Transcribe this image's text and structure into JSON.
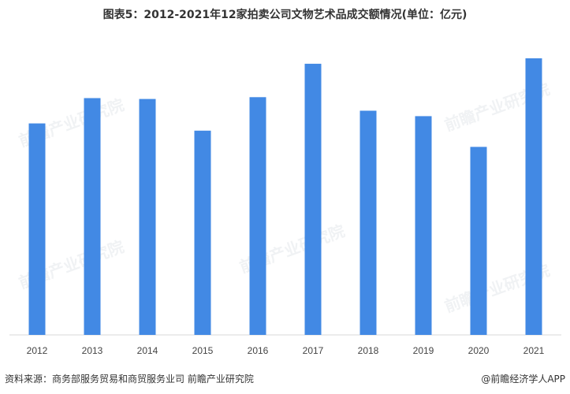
{
  "title": "图表5：2012-2021年12家拍卖公司文物艺术品成交额情况(单位：亿元)",
  "source": "资料来源：商务部服务贸易和商贸服务业司 前瞻产业研究院",
  "brand": "@前瞻经济学人APP",
  "watermark": "前瞻产业研究院",
  "colors": {
    "bar": "#4289e4",
    "axis": "#d9d9d9"
  },
  "chart_data": {
    "type": "bar",
    "categories": [
      "2012",
      "2013",
      "2014",
      "2015",
      "2016",
      "2017",
      "2018",
      "2019",
      "2020",
      "2021"
    ],
    "values": [
      234,
      262,
      261,
      226,
      263,
      300,
      248,
      242,
      208,
      306
    ],
    "title": "图表5：2012-2021年12家拍卖公司文物艺术品成交额情况(单位：亿元)",
    "xlabel": "",
    "ylabel": "",
    "ylim": [
      0,
      340
    ],
    "grid": false,
    "legend": "none"
  }
}
